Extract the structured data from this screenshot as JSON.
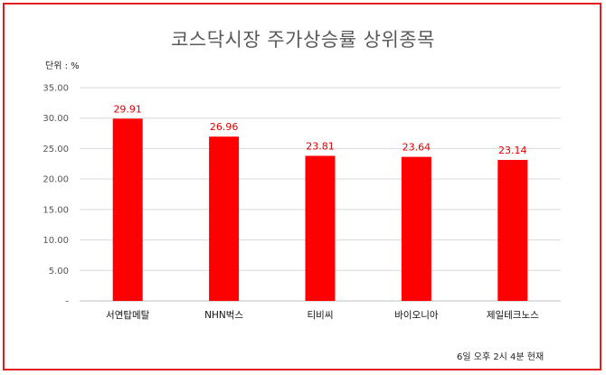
{
  "title": "코스닥시장 주가상승률 상위종목",
  "unit_label": "단위 : %",
  "footnote": "6일 오후 2시 4분 현재",
  "colors": {
    "bar": "#ff0000",
    "data_label": "#e00000",
    "frame": "#e02020",
    "grid": "#d9d9d9"
  },
  "chart_data": {
    "type": "bar",
    "categories": [
      "서연탑메탈",
      "NHN벅스",
      "티비씨",
      "바이오니아",
      "제일테크노스"
    ],
    "values": [
      29.91,
      26.96,
      23.81,
      23.64,
      23.14
    ],
    "value_labels": [
      "29.91",
      "26.96",
      "23.81",
      "23.64",
      "23.14"
    ],
    "yticks": [
      0,
      5,
      10,
      15,
      20,
      25,
      30,
      35
    ],
    "ytick_labels": [
      "-",
      "5.00",
      "10.00",
      "15.00",
      "20.00",
      "25.00",
      "30.00",
      "35.00"
    ],
    "ylim": [
      0,
      35
    ],
    "grid": true,
    "legend": "none",
    "title": "코스닥시장 주가상승률 상위종목",
    "xlabel": "",
    "ylabel": ""
  }
}
